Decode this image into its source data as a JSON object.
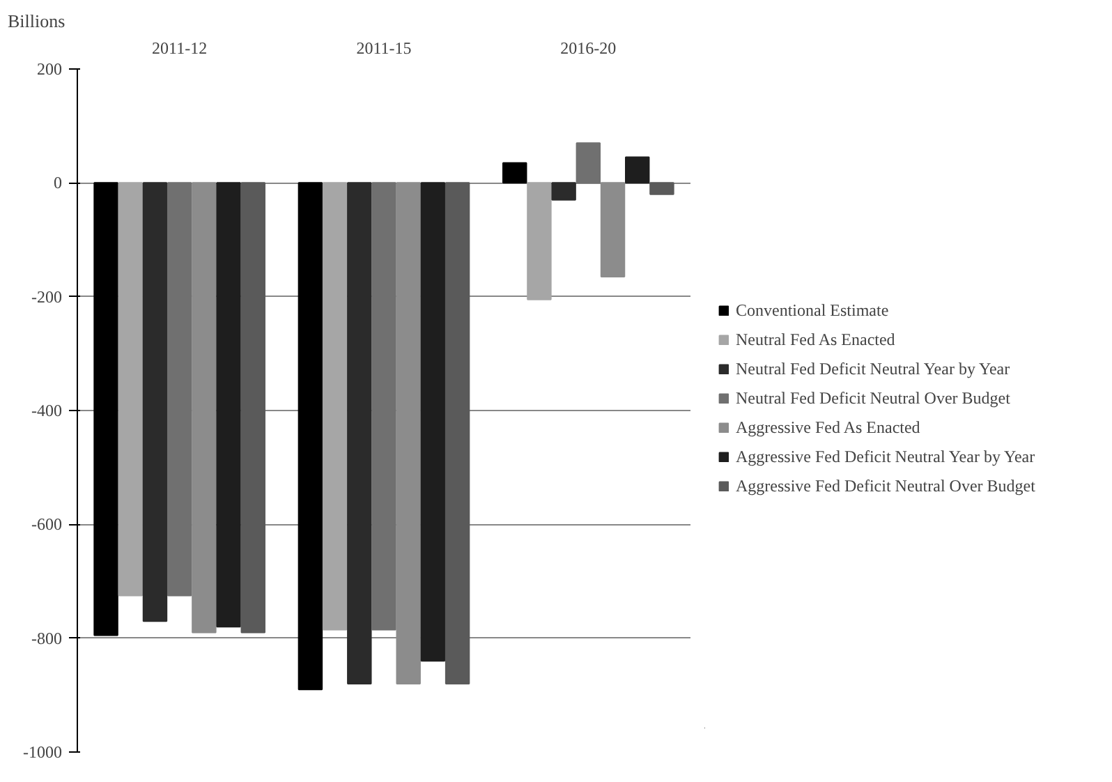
{
  "chart_data": {
    "type": "bar",
    "ylabel": "Billions",
    "categories": [
      "2011-12",
      "2011-15",
      "2016-20"
    ],
    "series": [
      {
        "name": "Conventional Estimate",
        "color": "#000000",
        "values": [
          -795,
          -890,
          35
        ]
      },
      {
        "name": "Neutral Fed As Enacted",
        "color": "#a6a6a6",
        "values": [
          -725,
          -785,
          -205
        ]
      },
      {
        "name": "Neutral Fed Deficit Neutral Year by Year",
        "color": "#2b2b2b",
        "values": [
          -770,
          -880,
          -30
        ]
      },
      {
        "name": "Neutral Fed Deficit Neutral Over Budget",
        "color": "#707070",
        "values": [
          -725,
          -785,
          70
        ]
      },
      {
        "name": "Aggressive Fed As Enacted",
        "color": "#8c8c8c",
        "values": [
          -790,
          -880,
          -165
        ]
      },
      {
        "name": "Aggressive Fed Deficit Neutral Year by Year",
        "color": "#1e1e1e",
        "values": [
          -780,
          -840,
          45
        ]
      },
      {
        "name": "Aggressive Fed Deficit Neutral Over Budget",
        "color": "#5a5a5a",
        "values": [
          -790,
          -880,
          -20
        ]
      }
    ],
    "ylim": [
      -1000,
      200
    ],
    "yticks": [
      -1000,
      -800,
      -600,
      -400,
      -200,
      0,
      200
    ],
    "grid": "y",
    "legend": "right"
  }
}
